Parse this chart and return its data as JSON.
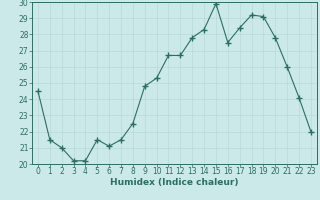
{
  "x_values": [
    0,
    1,
    2,
    3,
    4,
    5,
    6,
    7,
    8,
    9,
    10,
    11,
    12,
    13,
    14,
    15,
    16,
    17,
    18,
    19,
    20,
    21,
    22,
    23
  ],
  "y_values": [
    24.5,
    21.5,
    21.0,
    20.2,
    20.2,
    21.5,
    21.1,
    21.5,
    22.5,
    24.8,
    25.3,
    26.7,
    26.7,
    27.8,
    28.3,
    29.9,
    27.5,
    28.4,
    29.2,
    29.1,
    27.8,
    26.0,
    24.1,
    22.0
  ],
  "line_color": "#2d6e63",
  "marker": "+",
  "marker_size": 4,
  "marker_lw": 1.0,
  "bg_color": "#cce9e9",
  "grid_color": "#b8d8d8",
  "xlabel": "Humidex (Indice chaleur)",
  "ylim": [
    20,
    30
  ],
  "xlim_min": -0.5,
  "xlim_max": 23.5,
  "yticks": [
    20,
    21,
    22,
    23,
    24,
    25,
    26,
    27,
    28,
    29,
    30
  ],
  "xticks": [
    0,
    1,
    2,
    3,
    4,
    5,
    6,
    7,
    8,
    9,
    10,
    11,
    12,
    13,
    14,
    15,
    16,
    17,
    18,
    19,
    20,
    21,
    22,
    23
  ],
  "tick_fontsize": 5.5,
  "xlabel_fontsize": 6.5,
  "spine_color": "#2d6e63",
  "tick_color": "#2d6e63",
  "label_color": "#2d6e63"
}
